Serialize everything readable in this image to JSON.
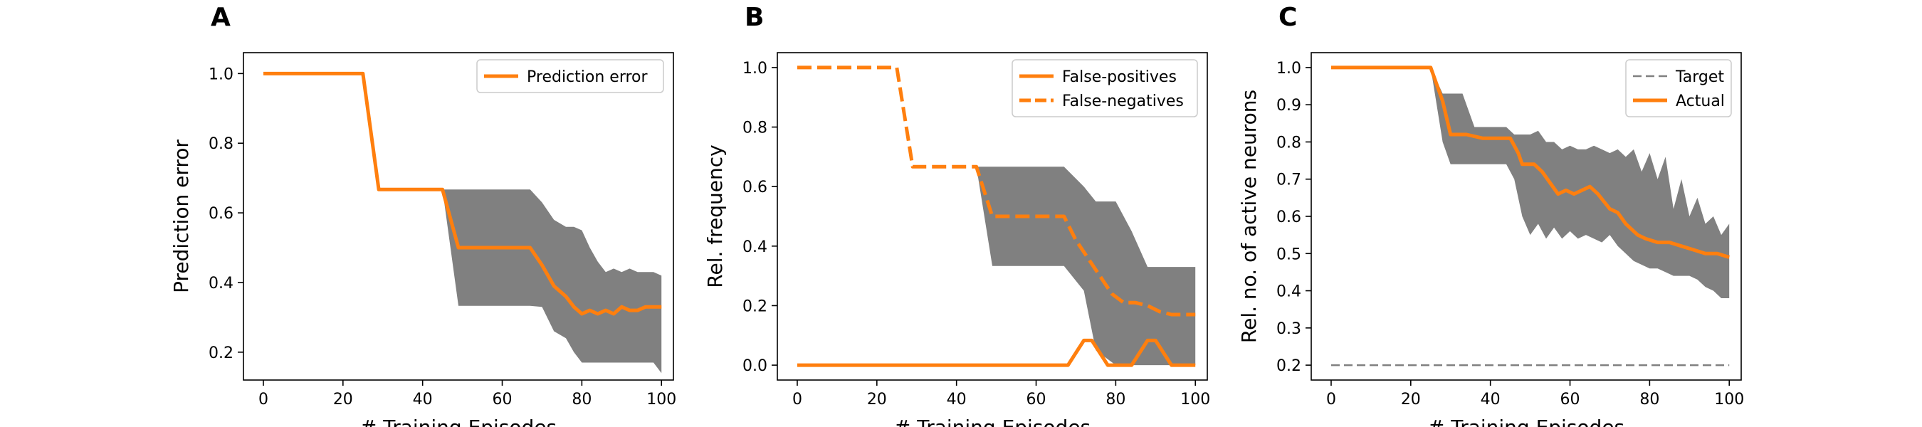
{
  "chart_data": [
    {
      "panel": "A",
      "type": "line",
      "xlabel": "# Training Episodes",
      "ylabel": "Prediction error",
      "xlim": [
        -5,
        103
      ],
      "ylim": [
        0.12,
        1.06
      ],
      "xticks": [
        0,
        20,
        40,
        60,
        80,
        100
      ],
      "yticks": [
        0.2,
        0.4,
        0.6,
        0.8,
        1.0
      ],
      "legend_position": "upper right",
      "series": [
        {
          "name": "Prediction error",
          "style": "solid",
          "color": "#ff7f0e",
          "x": [
            0,
            25,
            29,
            45,
            49,
            67,
            70,
            73,
            76,
            78,
            80,
            82,
            84,
            86,
            88,
            90,
            92,
            94,
            96,
            98,
            100
          ],
          "y": [
            1.0,
            1.0,
            0.667,
            0.667,
            0.5,
            0.5,
            0.45,
            0.39,
            0.36,
            0.33,
            0.31,
            0.32,
            0.31,
            0.32,
            0.31,
            0.33,
            0.32,
            0.32,
            0.33,
            0.33,
            0.33
          ]
        }
      ],
      "band": {
        "color": "#808080",
        "x": [
          45,
          49,
          67,
          70,
          73,
          76,
          78,
          80,
          82,
          84,
          86,
          88,
          90,
          92,
          94,
          96,
          98,
          100
        ],
        "upper": [
          0.667,
          0.667,
          0.667,
          0.63,
          0.58,
          0.56,
          0.56,
          0.55,
          0.5,
          0.46,
          0.43,
          0.44,
          0.43,
          0.44,
          0.43,
          0.43,
          0.43,
          0.42
        ],
        "lower": [
          0.667,
          0.333,
          0.333,
          0.33,
          0.26,
          0.24,
          0.2,
          0.17,
          0.17,
          0.17,
          0.17,
          0.17,
          0.17,
          0.17,
          0.17,
          0.17,
          0.17,
          0.14
        ]
      }
    },
    {
      "panel": "B",
      "type": "line",
      "xlabel": "# Training Episodes",
      "ylabel": "Rel. frequency",
      "xlim": [
        -5,
        103
      ],
      "ylim": [
        -0.05,
        1.05
      ],
      "xticks": [
        0,
        20,
        40,
        60,
        80,
        100
      ],
      "yticks": [
        0.0,
        0.2,
        0.4,
        0.6,
        0.8,
        1.0
      ],
      "legend_position": "upper right",
      "series": [
        {
          "name": "False-positives",
          "style": "solid",
          "color": "#ff7f0e",
          "x": [
            0,
            68,
            72,
            74,
            78,
            84,
            88,
            90,
            94,
            98,
            100
          ],
          "y": [
            0,
            0,
            0.083,
            0.083,
            0,
            0,
            0.083,
            0.083,
            0,
            0,
            0
          ]
        },
        {
          "name": "False-negatives",
          "style": "dashed",
          "color": "#ff7f0e",
          "x": [
            0,
            25,
            29,
            45,
            49,
            67,
            70,
            73,
            76,
            79,
            82,
            85,
            88,
            91,
            94,
            97,
            100
          ],
          "y": [
            1.0,
            1.0,
            0.667,
            0.667,
            0.5,
            0.5,
            0.42,
            0.36,
            0.3,
            0.24,
            0.21,
            0.21,
            0.2,
            0.18,
            0.17,
            0.17,
            0.17
          ]
        }
      ],
      "band": {
        "color": "#808080",
        "x": [
          45,
          49,
          67,
          72,
          75,
          80,
          84,
          88,
          93,
          100
        ],
        "upper": [
          0.667,
          0.667,
          0.667,
          0.6,
          0.55,
          0.55,
          0.45,
          0.33,
          0.33,
          0.33
        ],
        "lower": [
          0.667,
          0.333,
          0.333,
          0.25,
          0.05,
          0,
          0,
          0,
          0,
          0
        ]
      }
    },
    {
      "panel": "C",
      "type": "line",
      "xlabel": "# Training Episodes",
      "ylabel": "Rel. no. of active neurons",
      "xlim": [
        -5,
        103
      ],
      "ylim": [
        0.16,
        1.04
      ],
      "xticks": [
        0,
        20,
        40,
        60,
        80,
        100
      ],
      "yticks": [
        0.2,
        0.3,
        0.4,
        0.5,
        0.6,
        0.7,
        0.8,
        0.9,
        1.0
      ],
      "legend_position": "upper right",
      "series": [
        {
          "name": "Target",
          "style": "dashed",
          "color": "#808080",
          "x": [
            0,
            100
          ],
          "y": [
            0.2,
            0.2
          ]
        },
        {
          "name": "Actual",
          "style": "solid",
          "color": "#ff7f0e",
          "x": [
            0,
            25,
            28,
            30,
            34,
            38,
            42,
            45,
            47,
            48,
            51,
            53,
            55,
            57,
            59,
            61,
            63,
            65,
            67,
            70,
            72,
            74,
            77,
            79,
            82,
            85,
            88,
            91,
            94,
            97,
            100
          ],
          "y": [
            1.0,
            1.0,
            0.91,
            0.82,
            0.82,
            0.81,
            0.81,
            0.81,
            0.77,
            0.74,
            0.74,
            0.72,
            0.69,
            0.66,
            0.67,
            0.66,
            0.67,
            0.68,
            0.66,
            0.62,
            0.61,
            0.58,
            0.55,
            0.54,
            0.53,
            0.53,
            0.52,
            0.51,
            0.5,
            0.5,
            0.49
          ]
        }
      ],
      "band": {
        "color": "#808080",
        "x": [
          25,
          28,
          30,
          33,
          36,
          40,
          44,
          46,
          48,
          50,
          52,
          54,
          56,
          58,
          60,
          62,
          64,
          66,
          68,
          70,
          72,
          74,
          76,
          78,
          80,
          82,
          84,
          86,
          88,
          90,
          92,
          94,
          96,
          98,
          100
        ],
        "upper": [
          1.0,
          0.93,
          0.93,
          0.93,
          0.84,
          0.84,
          0.84,
          0.82,
          0.82,
          0.82,
          0.83,
          0.8,
          0.8,
          0.78,
          0.79,
          0.78,
          0.78,
          0.79,
          0.78,
          0.77,
          0.78,
          0.76,
          0.78,
          0.72,
          0.77,
          0.7,
          0.76,
          0.62,
          0.7,
          0.6,
          0.65,
          0.58,
          0.6,
          0.55,
          0.58
        ],
        "lower": [
          1.0,
          0.8,
          0.74,
          0.74,
          0.74,
          0.74,
          0.74,
          0.7,
          0.6,
          0.55,
          0.58,
          0.54,
          0.57,
          0.54,
          0.56,
          0.54,
          0.55,
          0.54,
          0.53,
          0.55,
          0.52,
          0.5,
          0.48,
          0.47,
          0.46,
          0.46,
          0.45,
          0.44,
          0.44,
          0.44,
          0.43,
          0.41,
          0.4,
          0.38,
          0.38
        ]
      }
    }
  ]
}
